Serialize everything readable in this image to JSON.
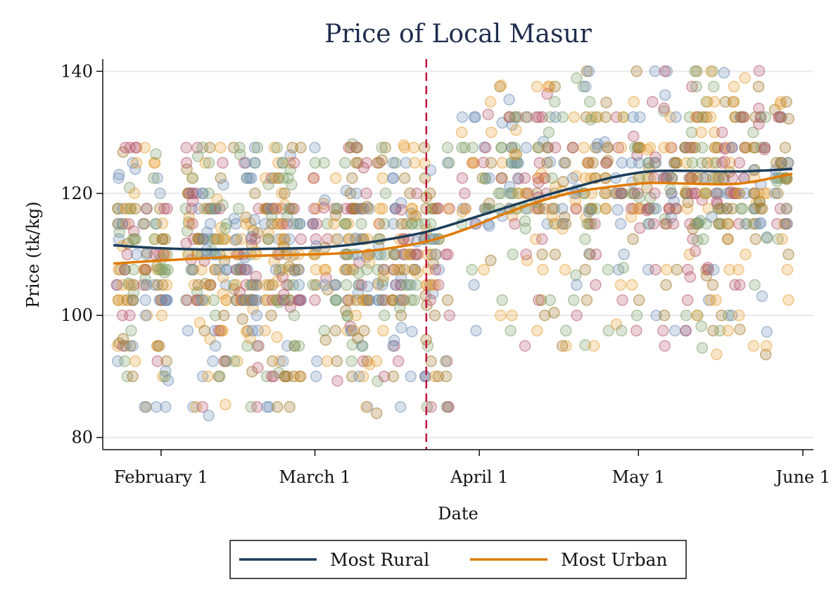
{
  "chart_data": {
    "type": "scatter",
    "title": "Price of Local Masur",
    "xlabel": "Date",
    "ylabel": "Price (tk/kg)",
    "x_axis": {
      "type": "date",
      "ticks": [
        "2020-02-01",
        "2020-03-01",
        "2020-04-01",
        "2020-05-01",
        "2020-06-01"
      ],
      "tick_labels": [
        "February 1",
        "March 1",
        "April 1",
        "May 1",
        "June 1"
      ],
      "range": [
        "2020-01-21",
        "2020-06-03"
      ]
    },
    "y_axis": {
      "ticks": [
        80,
        100,
        120,
        140
      ],
      "range": [
        78,
        142
      ]
    },
    "grid": "horizontal",
    "vertical_marker": {
      "x": "2020-03-22",
      "color": "#c0143c",
      "style": "dashed"
    },
    "point_colors": [
      "#6f8fb8",
      "#e8a33a",
      "#b85a6e",
      "#7fa36a",
      "#a07828"
    ],
    "point_price_levels": [
      85,
      90,
      92.5,
      95,
      97.5,
      100,
      102.5,
      105,
      107.5,
      110,
      112.5,
      115,
      117.5,
      120,
      122.5,
      125,
      127.5,
      130,
      132.5,
      135,
      137.5,
      140
    ],
    "series": [
      {
        "name": "Most Rural",
        "color": "#1c3d5a",
        "points": [
          {
            "x": "2020-01-23",
            "y": 111.5
          },
          {
            "x": "2020-02-01",
            "y": 111.0
          },
          {
            "x": "2020-02-10",
            "y": 110.8
          },
          {
            "x": "2020-02-20",
            "y": 110.9
          },
          {
            "x": "2020-03-01",
            "y": 111.1
          },
          {
            "x": "2020-03-08",
            "y": 111.6
          },
          {
            "x": "2020-03-15",
            "y": 112.5
          },
          {
            "x": "2020-03-22",
            "y": 113.7
          },
          {
            "x": "2020-03-29",
            "y": 115.5
          },
          {
            "x": "2020-04-05",
            "y": 117.4
          },
          {
            "x": "2020-04-12",
            "y": 119.3
          },
          {
            "x": "2020-04-19",
            "y": 121.0
          },
          {
            "x": "2020-04-26",
            "y": 122.6
          },
          {
            "x": "2020-05-03",
            "y": 123.6
          },
          {
            "x": "2020-05-10",
            "y": 123.7
          },
          {
            "x": "2020-05-20",
            "y": 123.6
          },
          {
            "x": "2020-05-30",
            "y": 124.0
          }
        ]
      },
      {
        "name": "Most Urban",
        "color": "#e07b00",
        "points": [
          {
            "x": "2020-01-23",
            "y": 108.5
          },
          {
            "x": "2020-02-01",
            "y": 109.0
          },
          {
            "x": "2020-02-10",
            "y": 109.4
          },
          {
            "x": "2020-02-20",
            "y": 109.8
          },
          {
            "x": "2020-03-01",
            "y": 110.0
          },
          {
            "x": "2020-03-08",
            "y": 110.3
          },
          {
            "x": "2020-03-15",
            "y": 111.0
          },
          {
            "x": "2020-03-22",
            "y": 112.1
          },
          {
            "x": "2020-03-29",
            "y": 114.0
          },
          {
            "x": "2020-04-05",
            "y": 116.4
          },
          {
            "x": "2020-04-12",
            "y": 118.6
          },
          {
            "x": "2020-04-19",
            "y": 120.2
          },
          {
            "x": "2020-04-26",
            "y": 121.1
          },
          {
            "x": "2020-05-03",
            "y": 121.7
          },
          {
            "x": "2020-05-10",
            "y": 121.6
          },
          {
            "x": "2020-05-20",
            "y": 121.6
          },
          {
            "x": "2020-05-30",
            "y": 123.2
          }
        ]
      }
    ],
    "legend": {
      "placement": "bottom-center"
    }
  }
}
